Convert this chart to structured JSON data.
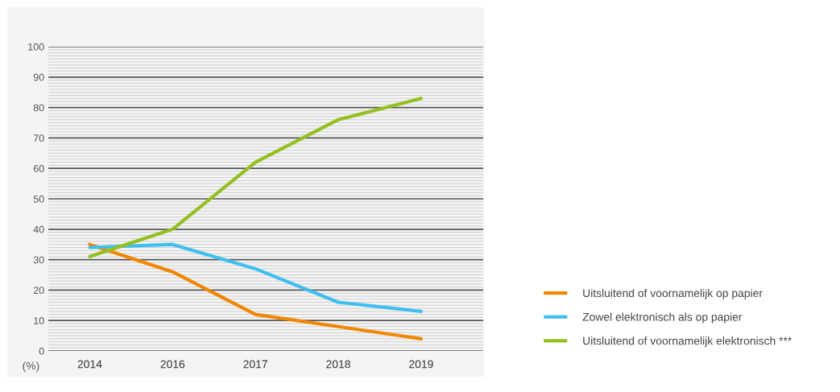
{
  "chart_data": {
    "type": "line",
    "categories": [
      "2014",
      "2016",
      "2017",
      "2018",
      "2019"
    ],
    "series": [
      {
        "name": "Uitsluitend of voornamelijk op papier",
        "color": "#f18700",
        "values": [
          35,
          26,
          12,
          8,
          4
        ]
      },
      {
        "name": "Zowel elektronisch als op papier",
        "color": "#3fbfef",
        "values": [
          34,
          35,
          27,
          16,
          13
        ]
      },
      {
        "name": "Uitsluitend of voornamelijk elektronisch ***",
        "color": "#93c01f",
        "values": [
          31,
          40,
          62,
          76,
          83
        ]
      }
    ],
    "ylim": [
      0,
      100
    ],
    "yticks": [
      0,
      {
        "value": 1,
        "label": null
      },
      {
        "value": 2,
        "label": null
      },
      {
        "value": 3,
        "label": null
      },
      {
        "value": 4,
        "label": null
      },
      {
        "value": 5,
        "label": null
      },
      {
        "value": 6,
        "label": null
      },
      {
        "value": 7,
        "label": null
      },
      {
        "value": 8,
        "label": null
      },
      {
        "value": 9,
        "label": null
      },
      10,
      {
        "value": 11,
        "label": null
      },
      {
        "value": 12,
        "label": null
      },
      {
        "value": 13,
        "label": null
      },
      {
        "value": 14,
        "label": null
      },
      {
        "value": 15,
        "label": null
      },
      {
        "value": 16,
        "label": null
      },
      {
        "value": 17,
        "label": null
      },
      {
        "value": 18,
        "label": null
      },
      {
        "value": 19,
        "label": null
      },
      20,
      {
        "value": 21,
        "label": null
      },
      {
        "value": 22,
        "label": null
      },
      {
        "value": 23,
        "label": null
      },
      {
        "value": 24,
        "label": null
      },
      {
        "value": 25,
        "label": null
      },
      {
        "value": 26,
        "label": null
      },
      {
        "value": 27,
        "label": null
      },
      {
        "value": 28,
        "label": null
      },
      {
        "value": 29,
        "label": null
      },
      30,
      {
        "value": 31,
        "label": null
      },
      {
        "value": 32,
        "label": null
      },
      {
        "value": 33,
        "label": null
      },
      {
        "value": 34,
        "label": null
      },
      {
        "value": 35,
        "label": null
      },
      {
        "value": 36,
        "label": null
      },
      {
        "value": 37,
        "label": null
      },
      {
        "value": 38,
        "label": null
      },
      {
        "value": 39,
        "label": null
      },
      40,
      {
        "value": 41,
        "label": null
      },
      {
        "value": 42,
        "label": null
      },
      {
        "value": 43,
        "label": null
      },
      {
        "value": 44,
        "label": null
      },
      {
        "value": 45,
        "label": null
      },
      {
        "value": 46,
        "label": null
      },
      {
        "value": 47,
        "label": null
      },
      {
        "value": 48,
        "label": null
      },
      {
        "value": 49,
        "label": null
      },
      50,
      {
        "value": 51,
        "label": null
      },
      {
        "value": 52,
        "label": null
      },
      {
        "value": 53,
        "label": null
      },
      {
        "value": 54,
        "label": null
      },
      {
        "value": 55,
        "label": null
      },
      {
        "value": 56,
        "label": null
      },
      {
        "value": 57,
        "label": null
      },
      {
        "value": 58,
        "label": null
      },
      {
        "value": 59,
        "label": null
      },
      60,
      {
        "value": 61,
        "label": null
      },
      {
        "value": 62,
        "label": null
      },
      {
        "value": 63,
        "label": null
      },
      {
        "value": 64,
        "label": null
      },
      {
        "value": 65,
        "label": null
      },
      {
        "value": 66,
        "label": null
      },
      {
        "value": 67,
        "label": null
      },
      {
        "value": 68,
        "label": null
      },
      {
        "value": 69,
        "label": null
      },
      70,
      {
        "value": 71,
        "label": null
      },
      {
        "value": 72,
        "label": null
      },
      {
        "value": 73,
        "label": null
      },
      {
        "value": 74,
        "label": null
      },
      {
        "value": 75,
        "label": null
      },
      {
        "value": 76,
        "label": null
      },
      {
        "value": 77,
        "label": null
      },
      {
        "value": 78,
        "label": null
      },
      {
        "value": 79,
        "label": null
      },
      80,
      {
        "value": 81,
        "label": null
      },
      {
        "value": 82,
        "label": null
      },
      {
        "value": 83,
        "label": null
      },
      {
        "value": 84,
        "label": null
      },
      {
        "value": 85,
        "label": null
      },
      {
        "value": 86,
        "label": null
      },
      {
        "value": 87,
        "label": null
      },
      {
        "value": 88,
        "label": null
      },
      {
        "value": 89,
        "label": null
      },
      90,
      {
        "value": 91,
        "label": null
      },
      {
        "value": 92,
        "label": null
      },
      {
        "value": 93,
        "label": null
      },
      {
        "value": 94,
        "label": null
      },
      {
        "value": 95,
        "label": null
      },
      {
        "value": 96,
        "label": null
      },
      {
        "value": 97,
        "label": null
      },
      {
        "value": 98,
        "label": null
      },
      {
        "value": 99,
        "label": null
      },
      100
    ],
    "grid": "y",
    "legend": "right",
    "marker": "none",
    "line_style": "solid",
    "annotations": [
      "(%)"
    ]
  }
}
